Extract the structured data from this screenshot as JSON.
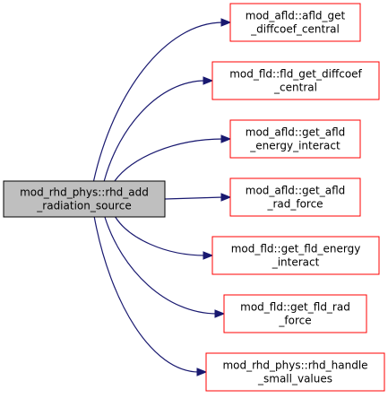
{
  "graph": {
    "root": {
      "id": "root",
      "lines": [
        "mod_rhd_phys::rhd_add",
        "_radiation_source"
      ],
      "fill": "#bfbfbf",
      "stroke": "#000000"
    },
    "callees": [
      {
        "id": "c1",
        "lines": [
          "mod_afld::afld_get",
          "_diffcoef_central"
        ]
      },
      {
        "id": "c2",
        "lines": [
          "mod_fld::fld_get_diffcoef",
          "_central"
        ]
      },
      {
        "id": "c3",
        "lines": [
          "mod_afld::get_afld",
          "_energy_interact"
        ]
      },
      {
        "id": "c4",
        "lines": [
          "mod_afld::get_afld",
          "_rad_force"
        ]
      },
      {
        "id": "c5",
        "lines": [
          "mod_fld::get_fld_energy",
          "_interact"
        ]
      },
      {
        "id": "c6",
        "lines": [
          "mod_fld::get_fld_rad",
          "_force"
        ]
      },
      {
        "id": "c7",
        "lines": [
          "mod_rhd_phys::rhd_handle",
          "_small_values"
        ]
      }
    ],
    "colors": {
      "callee_stroke": "#ff0000",
      "callee_fill": "#ffffff",
      "edge": "#191970"
    }
  }
}
